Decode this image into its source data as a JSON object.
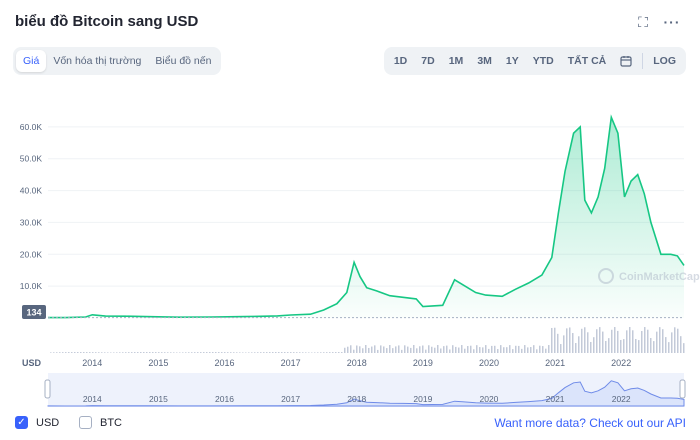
{
  "header": {
    "title": "biểu đồ Bitcoin sang USD",
    "expand_icon": "⛶",
    "more_icon": "···"
  },
  "chart_tabs": [
    {
      "label": "Giá",
      "active": true
    },
    {
      "label": "Vốn hóa thị trường",
      "active": false
    },
    {
      "label": "Biểu đồ nến",
      "active": false
    }
  ],
  "ranges": [
    {
      "label": "1D"
    },
    {
      "label": "7D"
    },
    {
      "label": "1M"
    },
    {
      "label": "3M"
    },
    {
      "label": "1Y"
    },
    {
      "label": "YTD"
    },
    {
      "label": "TẤT CẢ"
    }
  ],
  "calendar_icon": "calendar-icon",
  "log_label": "LOG",
  "watermark": "CoinMarketCap",
  "colors": {
    "line": "#16c784",
    "accent": "#3861fb",
    "volume": "#a6b0c3",
    "navigator_fill": "#dbe4fb"
  },
  "chart_data": {
    "type": "area",
    "title": "biểu đồ Bitcoin sang USD",
    "ylabel": "USD",
    "ylim": [
      0,
      70000
    ],
    "y_ticks": [
      "10.0K",
      "20.0K",
      "30.0K",
      "40.0K",
      "50.0K",
      "60.0K"
    ],
    "y_tick_values": [
      10000,
      20000,
      30000,
      40000,
      50000,
      60000
    ],
    "x_ticks": [
      "2014",
      "2015",
      "2016",
      "2017",
      "2018",
      "2019",
      "2020",
      "2021",
      "2022"
    ],
    "x_tick_values": [
      2014,
      2015,
      2016,
      2017,
      2018,
      2019,
      2020,
      2021,
      2022
    ],
    "xlim": [
      2013.33,
      2022.95
    ],
    "current_price_label": "134",
    "current_price_value": 134,
    "series": [
      {
        "x": [
          2013.33,
          2013.6,
          2013.9,
          2014.0,
          2014.2,
          2014.5,
          2014.9,
          2015.3,
          2015.8,
          2016.3,
          2016.8,
          2017.0,
          2017.3,
          2017.5,
          2017.7,
          2017.85,
          2017.96,
          2018.05,
          2018.15,
          2018.3,
          2018.5,
          2018.7,
          2018.9,
          2019.0,
          2019.3,
          2019.48,
          2019.6,
          2019.8,
          2019.95,
          2020.2,
          2020.4,
          2020.6,
          2020.8,
          2020.95,
          2021.05,
          2021.15,
          2021.28,
          2021.38,
          2021.45,
          2021.55,
          2021.65,
          2021.75,
          2021.85,
          2021.95,
          2022.05,
          2022.15,
          2022.25,
          2022.35,
          2022.45,
          2022.6,
          2022.75,
          2022.85,
          2022.95
        ],
        "y": [
          134,
          110,
          300,
          1000,
          600,
          550,
          400,
          250,
          300,
          430,
          650,
          950,
          1200,
          2500,
          4500,
          8000,
          17500,
          13000,
          9500,
          8500,
          7000,
          6500,
          6000,
          3600,
          4000,
          12000,
          10500,
          8000,
          7200,
          6800,
          9000,
          11000,
          13500,
          19000,
          33000,
          46000,
          58000,
          60000,
          37000,
          33000,
          38000,
          47000,
          63000,
          58000,
          38000,
          43000,
          45000,
          39000,
          30000,
          20000,
          20000,
          19500,
          16500
        ]
      }
    ],
    "volume_note": "volume bars shown at bottom"
  },
  "footer": {
    "usd_label": "USD",
    "btc_label": "BTC",
    "api_link": "Want more data? Check out our API"
  }
}
